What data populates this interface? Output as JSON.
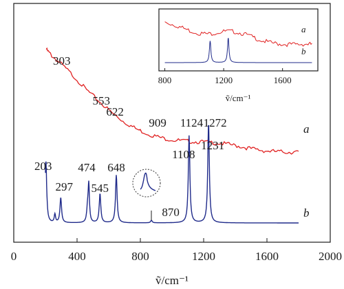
{
  "chart_data": [
    {
      "type": "line",
      "title": "",
      "xlabel": "ṽ/cm⁻¹",
      "ylabel": "",
      "xlim": [
        0,
        2000
      ],
      "x_ticks": [
        0,
        400,
        800,
        1200,
        1600,
        2000
      ],
      "grid": false,
      "legend": "none",
      "series": [
        {
          "name": "a",
          "color": "#e02020",
          "x": [
            205,
            240,
            300,
            380,
            460,
            540,
            620,
            700,
            780,
            860,
            940,
            1020,
            1100,
            1180,
            1260,
            1340,
            1420,
            1500,
            1580,
            1660,
            1740,
            1800
          ],
          "y": [
            0.84,
            0.81,
            0.77,
            0.71,
            0.645,
            0.59,
            0.535,
            0.49,
            0.455,
            0.43,
            0.413,
            0.403,
            0.398,
            0.395,
            0.392,
            0.385,
            0.375,
            0.362,
            0.353,
            0.348,
            0.346,
            0.345
          ]
        },
        {
          "name": "b",
          "color": "#1f2a8a",
          "baseline": 0.0,
          "peaks": [
            {
              "x": 203,
              "height": 0.3,
              "width": 6
            },
            {
              "x": 260,
              "height": 0.04,
              "width": 5
            },
            {
              "x": 297,
              "height": 0.12,
              "width": 6
            },
            {
              "x": 466,
              "height": 0.06,
              "width": 6
            },
            {
              "x": 474,
              "height": 0.18,
              "width": 5
            },
            {
              "x": 545,
              "height": 0.14,
              "width": 6
            },
            {
              "x": 648,
              "height": 0.23,
              "width": 6
            },
            {
              "x": 870,
              "height": 0.012,
              "width": 6
            },
            {
              "x": 1108,
              "height": 0.42,
              "width": 6
            },
            {
              "x": 1231,
              "height": 0.48,
              "width": 6
            }
          ]
        }
      ],
      "annotations": [
        {
          "text": "303",
          "x": 303
        },
        {
          "text": "553",
          "x": 553
        },
        {
          "text": "622",
          "x": 622
        },
        {
          "text": "909",
          "x": 909
        },
        {
          "text": "1124",
          "x": 1124
        },
        {
          "text": "1272",
          "x": 1272
        },
        {
          "text": "203",
          "x": 203
        },
        {
          "text": "297",
          "x": 297
        },
        {
          "text": "474",
          "x": 474
        },
        {
          "text": "545",
          "x": 545
        },
        {
          "text": "648",
          "x": 648
        },
        {
          "text": "870",
          "x": 870
        },
        {
          "text": "1108",
          "x": 1108
        },
        {
          "text": "1231",
          "x": 1231
        }
      ],
      "series_labels": [
        "a",
        "b"
      ]
    },
    {
      "type": "line",
      "title": "",
      "xlabel": "ṽ/cm⁻¹",
      "ylabel": "",
      "xlim": [
        760,
        1840
      ],
      "x_ticks": [
        800,
        1200,
        1600
      ],
      "grid": false,
      "legend": "none",
      "series": [
        {
          "name": "a",
          "color": "#e02020",
          "x": [
            800,
            860,
            920,
            980,
            1040,
            1100,
            1160,
            1220,
            1280,
            1340,
            1400,
            1460,
            1520,
            1580,
            1640,
            1700,
            1760,
            1800
          ],
          "y": [
            0.9,
            0.86,
            0.8,
            0.74,
            0.7,
            0.69,
            0.72,
            0.74,
            0.73,
            0.69,
            0.63,
            0.57,
            0.53,
            0.51,
            0.5,
            0.5,
            0.51,
            0.5
          ]
        },
        {
          "name": "b",
          "color": "#1f2a8a",
          "baseline": 0.0,
          "peaks": [
            {
              "x": 1108,
              "height": 0.42,
              "width": 6
            },
            {
              "x": 1231,
              "height": 0.48,
              "width": 6
            }
          ]
        }
      ],
      "series_labels": [
        "a",
        "b"
      ]
    }
  ]
}
